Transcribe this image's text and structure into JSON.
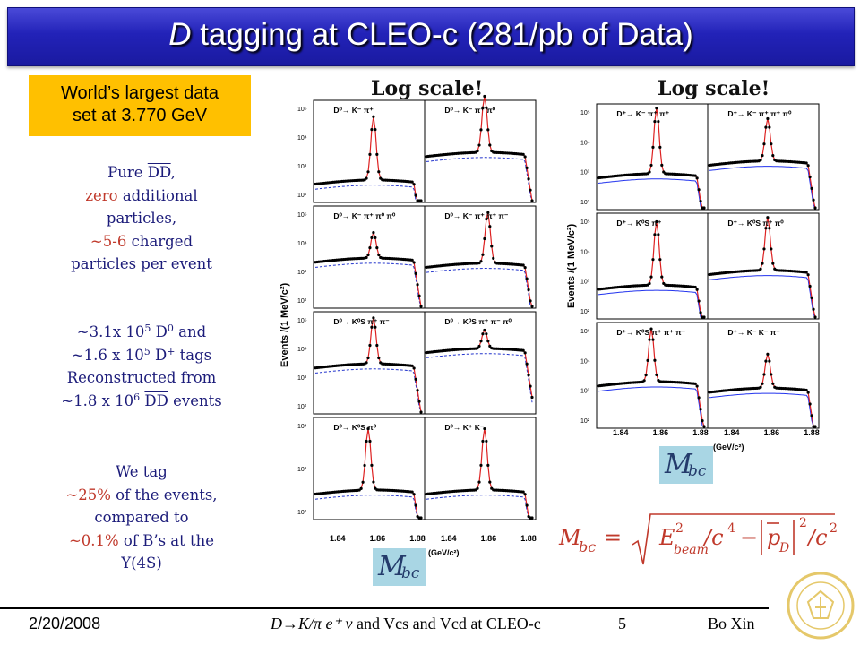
{
  "header": {
    "title_d": "D",
    "title_rest": " tagging at CLEO-c (281/pb of Data)"
  },
  "callout": {
    "line1": "World’s largest data",
    "line2": "set at 3.770 GeV"
  },
  "notes": {
    "b1_l1a": "Pure ",
    "b1_l1b": "DD",
    "b1_l1c": ",",
    "b1_l2a": "zero",
    "b1_l2b": " additional",
    "b1_l3": "particles,",
    "b1_l4a": "~5-6",
    "b1_l4b": " charged",
    "b1_l5": "particles per event",
    "b2_l1a": "~3.1x 10",
    "b2_l1b": "5",
    "b2_l1c": " D",
    "b2_l1d": "0",
    "b2_l1e": " and",
    "b2_l2a": "~1.6 x 10",
    "b2_l2b": "5",
    "b2_l2c": " D",
    "b2_l2d": "+",
    "b2_l2e": " tags",
    "b2_l3": "Reconstructed from",
    "b2_l4a": "~1.8 x 10",
    "b2_l4b": "6",
    "b2_l4c": " ",
    "b2_l4d": "DD",
    "b2_l4e": " events",
    "b3_l1": "We tag",
    "b3_l2a": "~25%",
    "b3_l2b": " of the events,",
    "b3_l3": "compared to",
    "b3_l4a": "~0.1%",
    "b3_l4b": " of B’s at the",
    "b3_l5": "Y(4S)"
  },
  "log_scale_label": "Log scale!",
  "y_axis_label": "Events /(1 MeV/c²)",
  "x_unit": "(GeV/c²)",
  "x_ticks": [
    "1.84",
    "1.86",
    "1.88"
  ],
  "d0_panels": [
    {
      "label": "D⁰→ K⁻ π⁺",
      "yticks": [
        "10⁵",
        "10⁴",
        "10³",
        "10²"
      ]
    },
    {
      "label": "D⁰→ K⁻ π⁺ π⁰",
      "yticks": []
    },
    {
      "label": "D⁰→ K⁻ π⁺ π⁰ π⁰",
      "yticks": [
        "10⁵",
        "10⁴",
        "10³",
        "10²"
      ]
    },
    {
      "label": "D⁰→ K⁻ π⁺ π⁺ π⁻",
      "yticks": []
    },
    {
      "label": "D⁰→ K⁰S π⁺ π⁻",
      "yticks": [
        "10⁵",
        "10⁴",
        "10³",
        "10²"
      ]
    },
    {
      "label": "D⁰→ K⁰S π⁺ π⁻ π⁰",
      "yticks": []
    },
    {
      "label": "D⁰→ K⁰S π⁰",
      "yticks": [
        "10⁴",
        "10³",
        "10²"
      ]
    },
    {
      "label": "D⁰→ K⁺ K⁻",
      "yticks": []
    }
  ],
  "dp_panels": [
    {
      "label": "D⁺→ K⁻ π⁺ π⁺",
      "yticks": [
        "10⁵",
        "10⁴",
        "10³",
        "10²"
      ]
    },
    {
      "label": "D⁺→ K⁻ π⁺ π⁺ π⁰",
      "yticks": []
    },
    {
      "label": "D⁺→ K⁰S π⁺",
      "yticks": [
        "10⁵",
        "10⁴",
        "10³",
        "10²"
      ]
    },
    {
      "label": "D⁺→ K⁰S π⁺ π⁰",
      "yticks": []
    },
    {
      "label": "D⁺→ K⁰S π⁺ π⁺ π⁻",
      "yticks": [
        "10⁵",
        "10⁴",
        "10³",
        "10²"
      ]
    },
    {
      "label": "D⁺→ K⁻ K⁻ π⁺",
      "yticks": []
    }
  ],
  "mbc": {
    "m": "M",
    "sub": "bc"
  },
  "formula": {
    "lhs_m": "M",
    "lhs_sub": "bc",
    "eq": "=",
    "e": "E",
    "e_sup": "2",
    "e_sub": "beam",
    "c4": "/c",
    "c4_sup": "4",
    "minus": "−",
    "p": "p",
    "p_sub": "D",
    "p_sup": "2",
    "c2": "/c",
    "c2_sup": "2"
  },
  "footer": {
    "date": "2/20/2008",
    "mid": " and Vcs and Vcd at CLEO-c",
    "mid_math": "D→K/π e⁺ ν",
    "page": "5",
    "author": "Bo Xin"
  },
  "logo": {
    "text": "purdue university"
  }
}
